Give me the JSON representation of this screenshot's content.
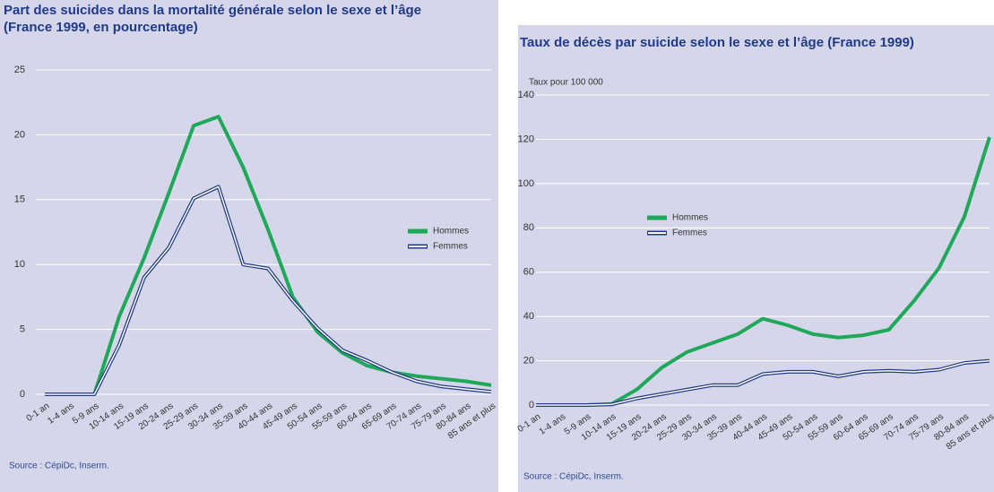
{
  "chart_data": [
    {
      "type": "line",
      "title": [
        "Part des suicides dans la mortalité générale selon le sexe et l’âge",
        "(France 1999, en pourcentage)"
      ],
      "categories": [
        "0-1 an",
        "1-4 ans",
        "5-9 ans",
        "10-14 ans",
        "15-19 ans",
        "20-24 ans",
        "25-29 ans",
        "30-34 ans",
        "35-39 ans",
        "40-44 ans",
        "45-49 ans",
        "50-54 ans",
        "55-59 ans",
        "60-64 ans",
        "65-69 ans",
        "70-74 ans",
        "75-79 ans",
        "80-84 ans",
        "85 ans et plus"
      ],
      "series": [
        {
          "name": "Hommes",
          "color": "#1fa85a",
          "style": "solid",
          "values": [
            0,
            0,
            0,
            6,
            10.5,
            15.5,
            20.7,
            21.4,
            17.5,
            12.7,
            7.5,
            4.8,
            3.2,
            2.2,
            1.7,
            1.4,
            1.2,
            1.0,
            0.7
          ]
        },
        {
          "name": "Femmes",
          "color": "#1f3a8a",
          "style": "double",
          "values": [
            0,
            0,
            0,
            3.8,
            9,
            11.3,
            15.1,
            16,
            10,
            9.7,
            7.2,
            5.1,
            3.4,
            2.6,
            1.7,
            1.0,
            0.6,
            0.4,
            0.2
          ]
        }
      ],
      "ylim": [
        0,
        25
      ],
      "yticks": [
        0,
        5,
        10,
        15,
        20,
        25
      ],
      "grid": true,
      "source": "Source : CépiDc, Inserm."
    },
    {
      "type": "line",
      "title": [
        "Taux de décès par suicide selon le sexe et l’âge (France 1999)"
      ],
      "y_label": "Taux pour 100 000",
      "categories": [
        "0-1 an",
        "1-4 ans",
        "5-9 ans",
        "10-14 ans",
        "15-19 ans",
        "20-24 ans",
        "25-29 ans",
        "30-34 ans",
        "35-39 ans",
        "40-44 ans",
        "45-49 ans",
        "50-54 ans",
        "55-59 ans",
        "60-64 ans",
        "65-69 ans",
        "70-74 ans",
        "75-79 ans",
        "80-84 ans",
        "85 ans et plus"
      ],
      "series": [
        {
          "name": "Hommes",
          "color": "#1fa85a",
          "style": "solid",
          "values": [
            0,
            0,
            0,
            0.5,
            7,
            17,
            24,
            28,
            32,
            39,
            36,
            32,
            30.5,
            31.5,
            34,
            47,
            62,
            85,
            121
          ]
        },
        {
          "name": "Femmes",
          "color": "#1f3a8a",
          "style": "double",
          "values": [
            0,
            0,
            0,
            0.3,
            3,
            5,
            7,
            9,
            9,
            14,
            15,
            15,
            13,
            15,
            15.5,
            15,
            16,
            19,
            20
          ]
        }
      ],
      "ylim": [
        0,
        140
      ],
      "yticks": [
        0,
        20,
        40,
        60,
        80,
        100,
        120,
        140
      ],
      "grid": true,
      "source": "Source : CépiDc, Inserm."
    }
  ]
}
